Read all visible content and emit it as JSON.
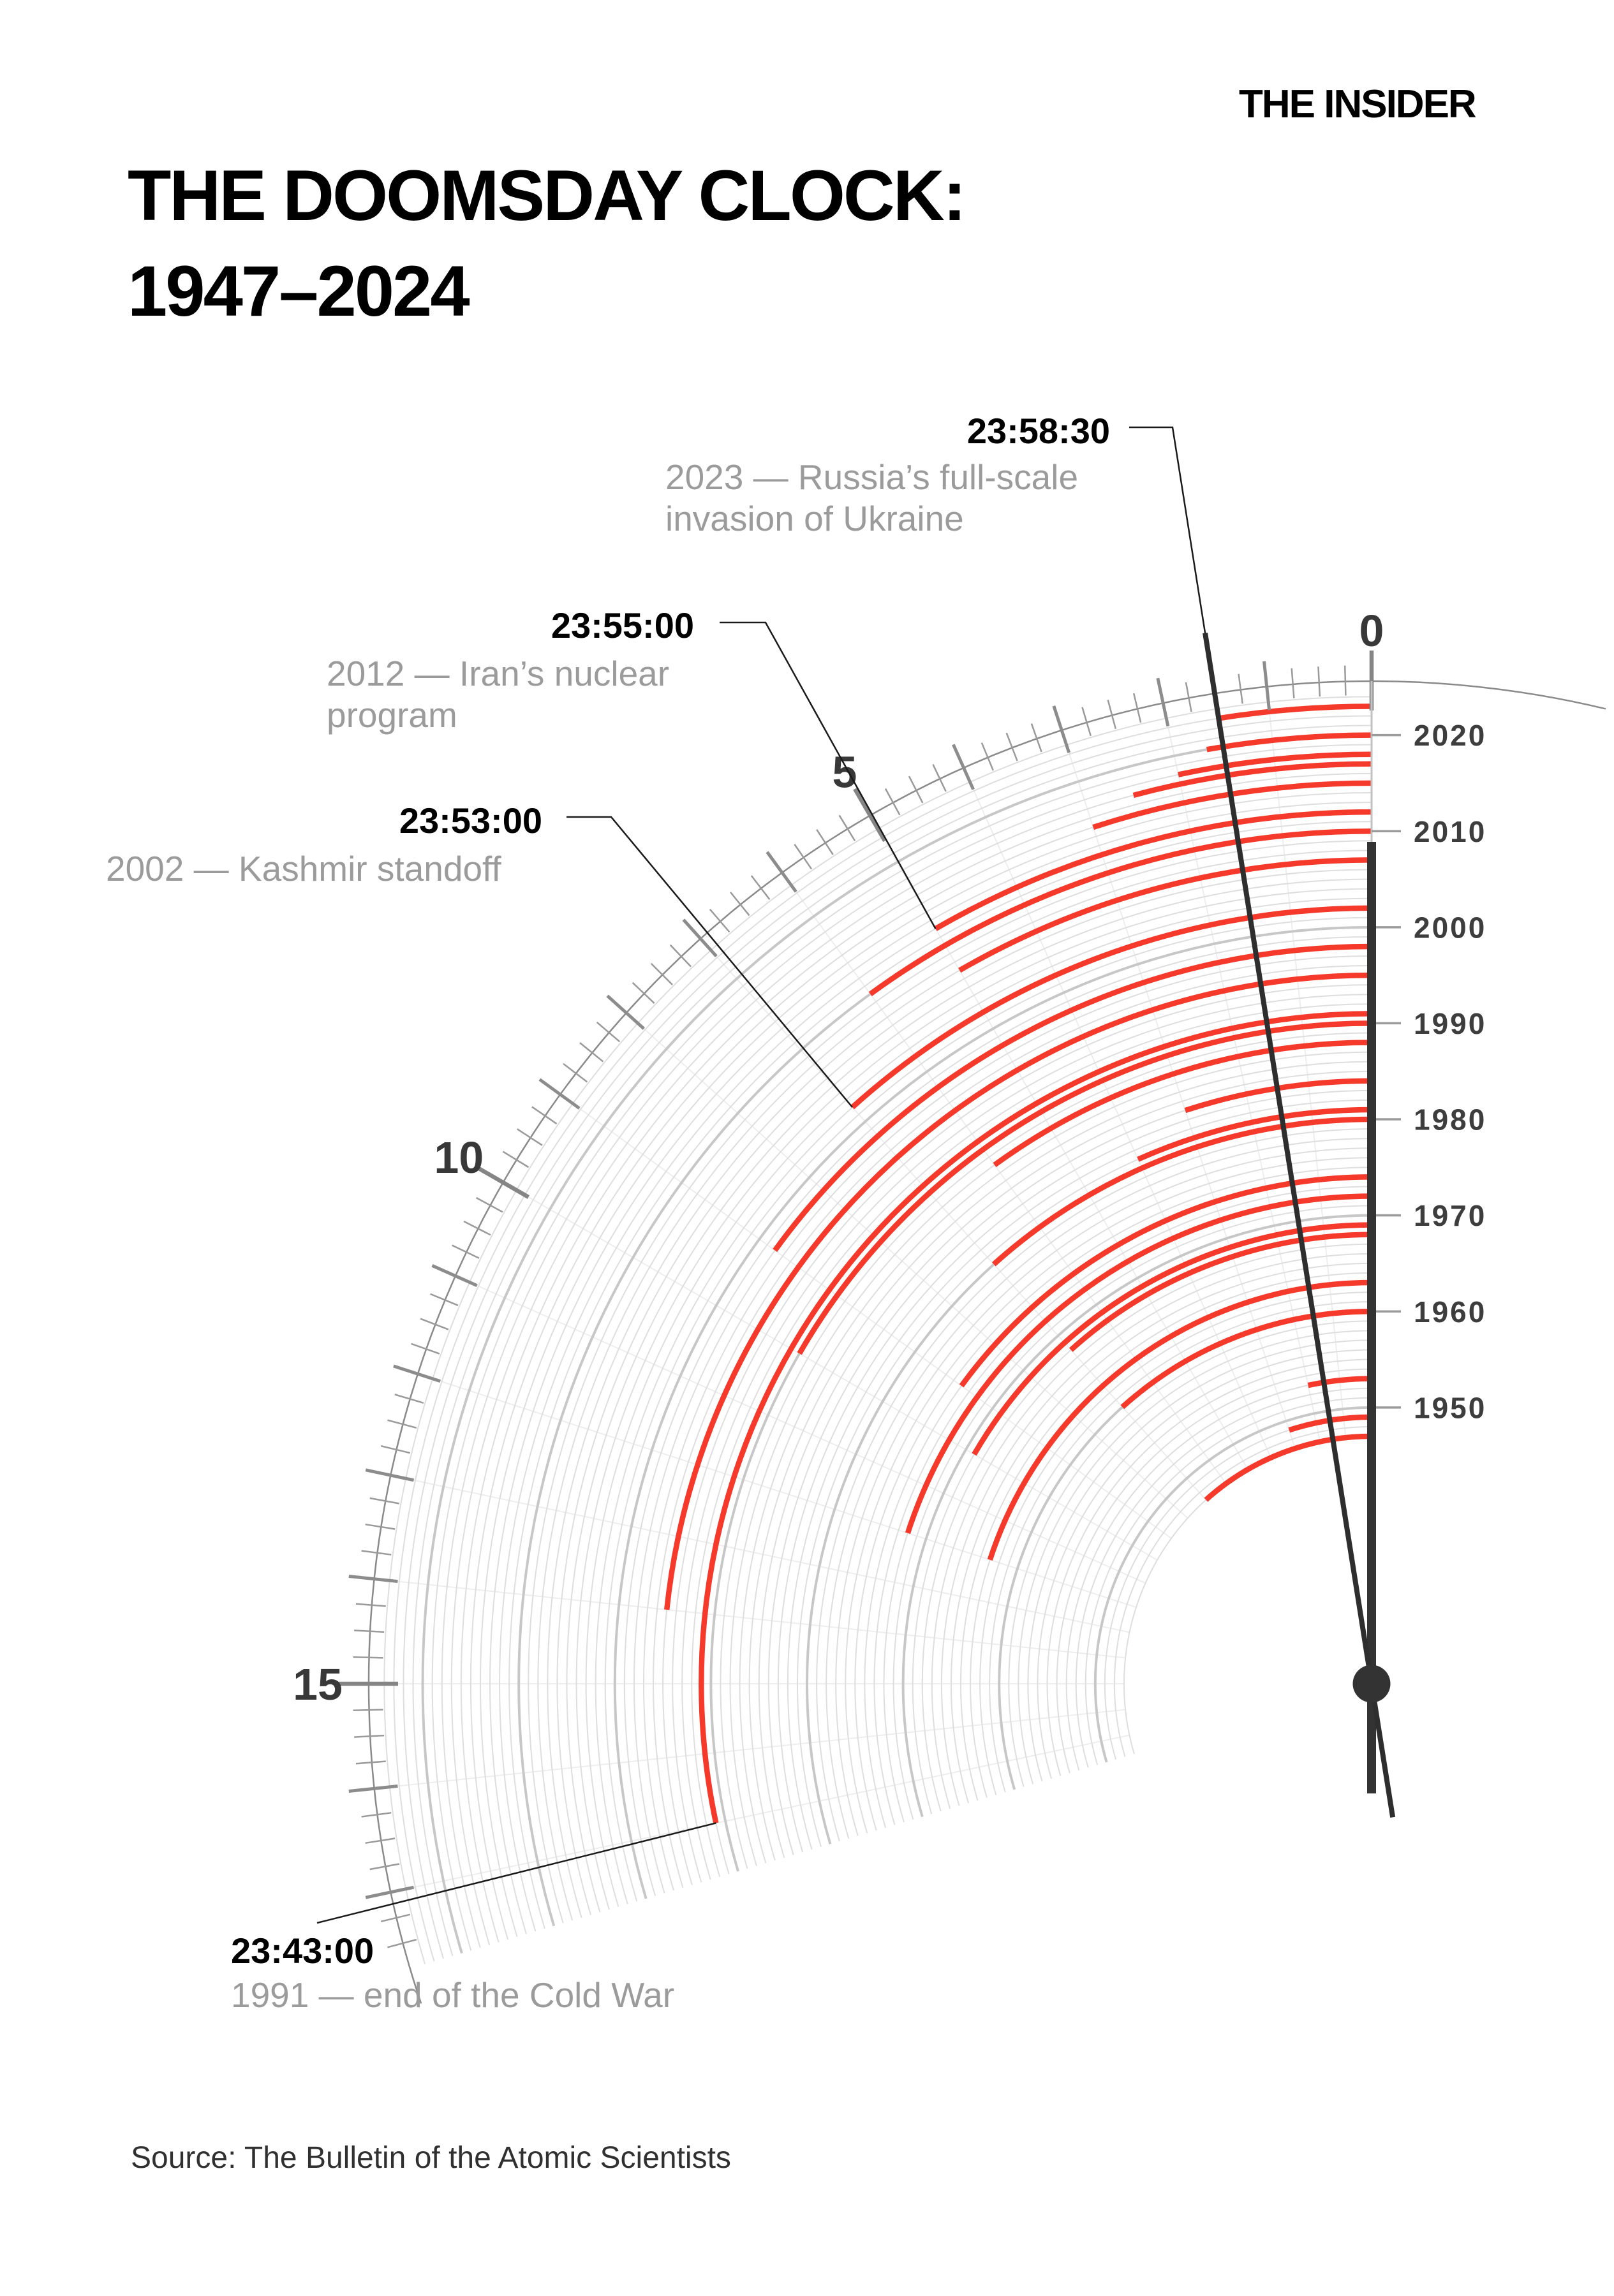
{
  "logo": "THE INSIDER",
  "title_line1": "THE DOOMSDAY CLOCK:",
  "title_line2": "1947–2024",
  "source": "Source: The Bulletin of the Atomic Scientists",
  "colors": {
    "arc_red": "#f5392b",
    "hand_dark": "#2e2e2e",
    "hour_bar": "#333333",
    "rim_gray": "#8a8a8a",
    "year_ring": "#dedede",
    "decade_ring": "#c7c7c7",
    "spoke": "#eeeeee",
    "annotation_gray": "#9b9b9b",
    "axis_thin": "#c2c2c2",
    "label_dark": "#3d3d3d"
  },
  "chart_data": {
    "type": "radial-arc-clock",
    "title": "THE DOOMSDAY CLOCK: 1947–2024",
    "units": "minutes to midnight",
    "first_year": 1947,
    "last_year": 2024,
    "angle_deg_per_minute": 6,
    "ring_end_minutes": 17.75,
    "tick_max_minutes": 17.5,
    "minute_labels": [
      0,
      5,
      10,
      15
    ],
    "decade_labels": [
      1950,
      1960,
      1970,
      1980,
      1990,
      2000,
      2010,
      2020
    ],
    "hand_minutes_to_midnight": 1.5,
    "hand_time": "23:58:30",
    "settings": [
      {
        "year": 1947,
        "minutes": 7
      },
      {
        "year": 1949,
        "minutes": 3
      },
      {
        "year": 1953,
        "minutes": 2
      },
      {
        "year": 1960,
        "minutes": 7
      },
      {
        "year": 1963,
        "minutes": 12
      },
      {
        "year": 1968,
        "minutes": 7
      },
      {
        "year": 1969,
        "minutes": 10
      },
      {
        "year": 1972,
        "minutes": 12
      },
      {
        "year": 1974,
        "minutes": 9
      },
      {
        "year": 1980,
        "minutes": 7
      },
      {
        "year": 1981,
        "minutes": 4
      },
      {
        "year": 1984,
        "minutes": 3
      },
      {
        "year": 1988,
        "minutes": 6
      },
      {
        "year": 1990,
        "minutes": 10
      },
      {
        "year": 1991,
        "minutes": 17
      },
      {
        "year": 1995,
        "minutes": 14
      },
      {
        "year": 1998,
        "minutes": 9
      },
      {
        "year": 2002,
        "minutes": 7
      },
      {
        "year": 2007,
        "minutes": 5
      },
      {
        "year": 2010,
        "minutes": 6
      },
      {
        "year": 2012,
        "minutes": 5
      },
      {
        "year": 2015,
        "minutes": 3
      },
      {
        "year": 2017,
        "minutes": 2.5
      },
      {
        "year": 2018,
        "minutes": 2
      },
      {
        "year": 2020,
        "minutes": 1.6667
      },
      {
        "year": 2023,
        "minutes": 1.5
      }
    ],
    "annotations": [
      {
        "id": "a2023",
        "time": "23:58:30",
        "desc": "2023 — Russia’s full-scale invasion of Ukraine",
        "year": 2023,
        "minutes": 1.5,
        "target": "hand"
      },
      {
        "id": "a2012",
        "time": "23:55:00",
        "desc": "2012 — Iran’s nuclear program",
        "year": 2012,
        "minutes": 5,
        "target": "arc"
      },
      {
        "id": "a2002",
        "time": "23:53:00",
        "desc": "2002 — Kashmir standoff",
        "year": 2002,
        "minutes": 7,
        "target": "arc"
      },
      {
        "id": "a1991",
        "time": "23:43:00",
        "desc": "1991 — end of the Cold War",
        "year": 1991,
        "minutes": 17,
        "target": "arc"
      }
    ]
  }
}
